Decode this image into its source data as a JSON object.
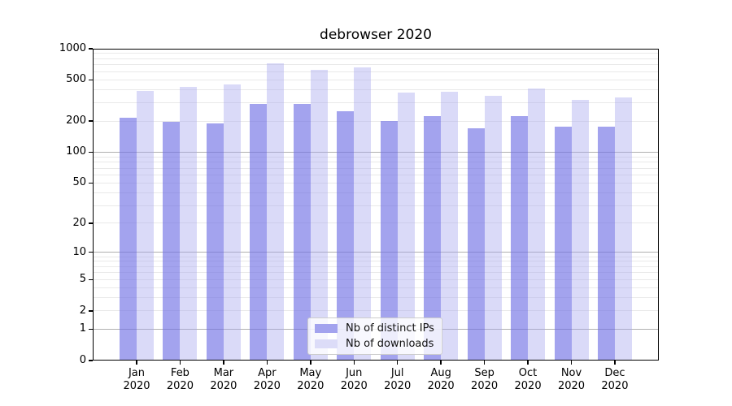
{
  "title": "debrowser 2020",
  "chart_data": {
    "type": "bar",
    "scale": "log1p",
    "title": "debrowser 2020",
    "xlabel": "",
    "ylabel": "",
    "ylim": [
      0,
      1000
    ],
    "yticks": [
      1000,
      500,
      200,
      100,
      50,
      20,
      10,
      5,
      2,
      1,
      0
    ],
    "categories": [
      "Jan",
      "Feb",
      "Mar",
      "Apr",
      "May",
      "Jun",
      "Jul",
      "Aug",
      "Sep",
      "Oct",
      "Nov",
      "Dec"
    ],
    "year": "2020",
    "series": [
      {
        "name": "Nb of distinct IPs",
        "color": "#a3a3ee",
        "fill": "rgba(113,113,229,0.65)",
        "values": [
          218,
          196,
          189,
          293,
          293,
          249,
          202,
          226,
          170,
          225,
          176,
          176
        ]
      },
      {
        "name": "Nb of downloads",
        "color": "#dcdcf8",
        "fill": "rgba(168,168,238,0.42)",
        "values": [
          394,
          427,
          451,
          728,
          632,
          659,
          376,
          388,
          353,
          414,
          320,
          340
        ]
      }
    ],
    "legend_position": "bottom-center-inside",
    "grid": {
      "major_color": "#b0b0b0",
      "minor_color": "#e9e9e9"
    },
    "axis_color": "#000000"
  }
}
